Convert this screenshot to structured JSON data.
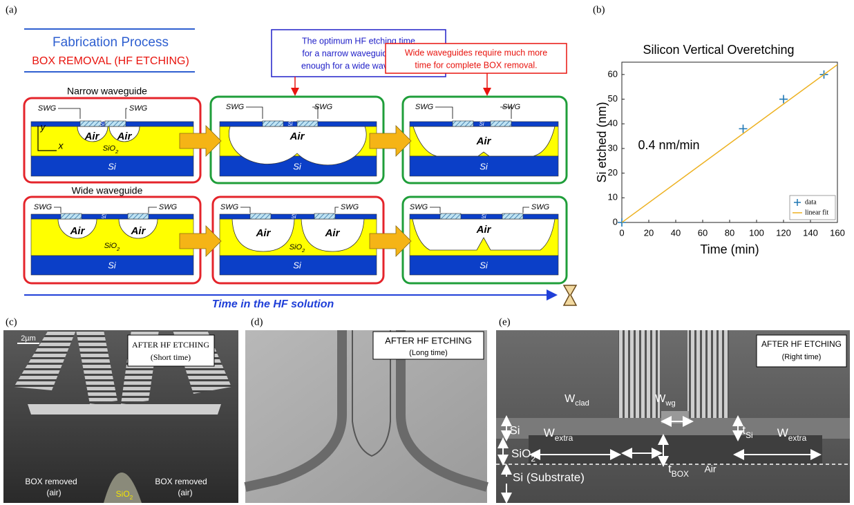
{
  "panel_a": {
    "label": "(a)",
    "heading": "Fabrication Process",
    "subheading": "BOX REMOVAL (HF ETCHING)",
    "callouts": [
      [
        "The optimum HF etching time",
        "for a narrow waveguide is not",
        "enough for a wide waveguide."
      ],
      [
        "Wide waveguides require much more",
        "time for complete BOX removal."
      ]
    ],
    "rows": [
      {
        "label": "Narrow waveguide"
      },
      {
        "label": "Wide waveguide"
      }
    ],
    "labels": {
      "swg": "SWG",
      "air": "Air",
      "si": "Si",
      "sio2": {
        "base": "SiO",
        "sub": "2"
      },
      "y": "y",
      "x": "x"
    },
    "time_axis": "Time in the HF solution"
  },
  "chart_data": {
    "type": "scatter",
    "label": "(b)",
    "title": "Silicon Vertical Overetching",
    "xlabel": "Time (min)",
    "ylabel": "Si etched (nm)",
    "annotation": "0.4 nm/min",
    "xlim": [
      0,
      160
    ],
    "ylim": [
      0,
      65
    ],
    "xticks": [
      0,
      20,
      40,
      60,
      80,
      100,
      120,
      140,
      160
    ],
    "yticks": [
      0,
      10,
      20,
      30,
      40,
      50,
      60
    ],
    "legend": "lower right",
    "series": [
      {
        "name": "data",
        "color": "#1f77b4",
        "marker": "+",
        "x": [
          0,
          90,
          120,
          150
        ],
        "values": [
          0,
          38,
          50,
          60
        ]
      },
      {
        "name": "linear fit",
        "color": "#edb120",
        "marker": "line",
        "x": [
          0,
          160
        ],
        "values": [
          0,
          64
        ]
      }
    ]
  },
  "panel_c": {
    "label": "(c)",
    "scale": "2µm",
    "note": [
      "AFTER HF ETCHING",
      "(Short time)"
    ],
    "box_left": [
      "BOX removed",
      "(air)"
    ],
    "box_right": [
      "BOX removed",
      "(air)"
    ],
    "sio2": {
      "base": "SiO",
      "sub": "2"
    }
  },
  "panel_d": {
    "label": "(d)",
    "note": [
      "AFTER HF ETCHING",
      "(Long time)"
    ]
  },
  "panel_e": {
    "label": "(e)",
    "note": [
      "AFTER HF ETCHING",
      "(Right time)"
    ],
    "w_clad": {
      "base": "W",
      "sub": "clad"
    },
    "w_wg": {
      "base": "W",
      "sub": "wg"
    },
    "si": "Si",
    "w_extra": {
      "base": "W",
      "sub": "extra"
    },
    "t_si": {
      "base": "t",
      "sub": "Si"
    },
    "sio2": {
      "base": "SiO",
      "sub": "2"
    },
    "t_box": {
      "base": "t",
      "sub": "BOX"
    },
    "air": "Air",
    "substrate": "Si (Substrate)"
  }
}
